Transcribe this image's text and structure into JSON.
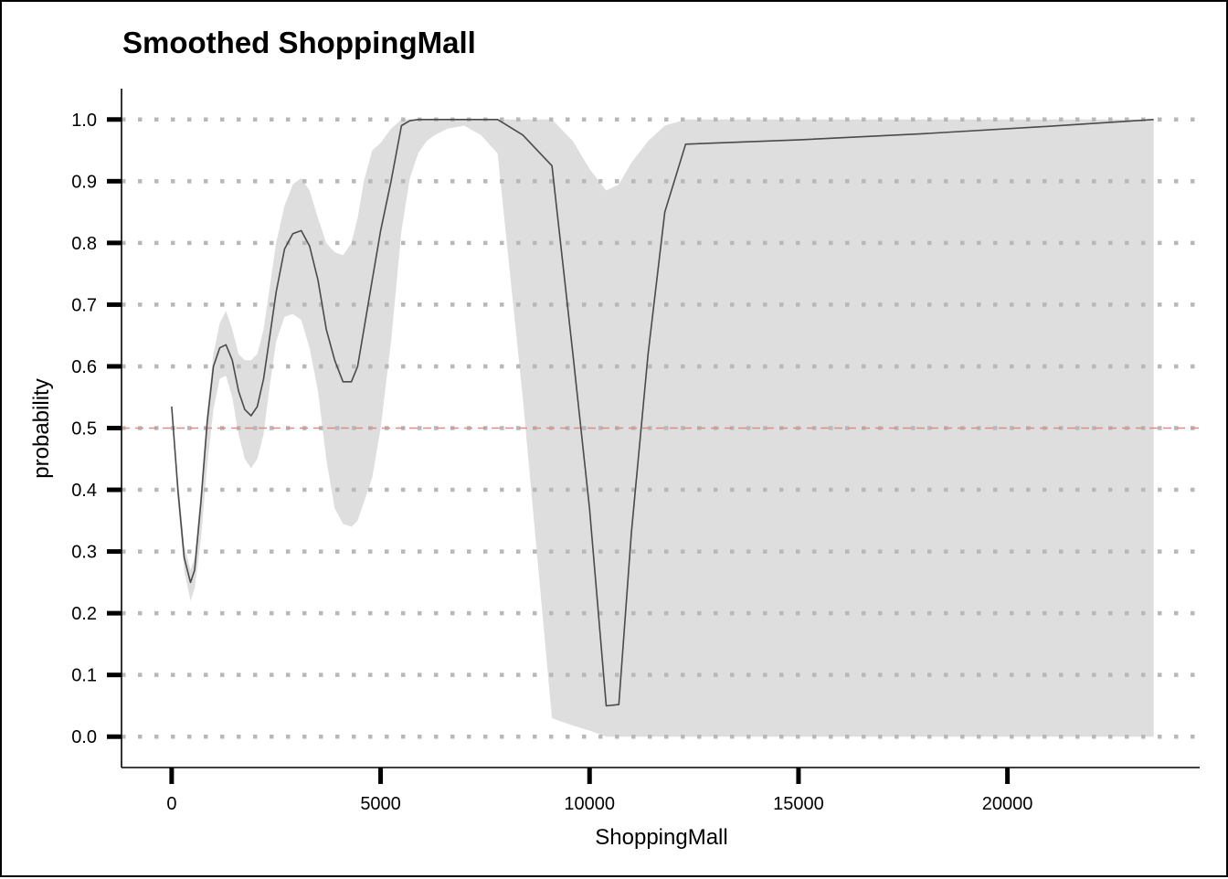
{
  "chart_data": {
    "type": "line",
    "title": "Smoothed ShoppingMall",
    "xlabel": "ShoppingMall",
    "ylabel": "probability",
    "xlim": [
      -1200,
      24600
    ],
    "ylim": [
      -0.05,
      1.05
    ],
    "x_ticks": [
      0,
      5000,
      10000,
      15000,
      20000
    ],
    "x_tick_labels": [
      "0",
      "5000",
      "10000",
      "15000",
      "20000"
    ],
    "y_ticks": [
      0.0,
      0.1,
      0.2,
      0.3,
      0.4,
      0.5,
      0.6,
      0.7,
      0.8,
      0.9,
      1.0
    ],
    "y_tick_labels": [
      "0.0",
      "0.1",
      "0.2",
      "0.3",
      "0.4",
      "0.5",
      "0.6",
      "0.7",
      "0.8",
      "0.9",
      "1.0"
    ],
    "grid": "horizontal dotted",
    "reference_line": {
      "y": 0.5,
      "style": "dashed",
      "color": "#e08a8a"
    },
    "colors": {
      "line": "#4a4a4a",
      "band": "#dedede",
      "grid": "#b8b8b8",
      "reference": "#e08a8a"
    },
    "series": [
      {
        "x": [
          0,
          150,
          300,
          450,
          550,
          700,
          850,
          1000,
          1150,
          1300,
          1450,
          1600,
          1750,
          1900,
          2050,
          2200,
          2350,
          2500,
          2700,
          2900,
          3100,
          3300,
          3500,
          3700,
          3900,
          4100,
          4300,
          4450,
          4600,
          4800,
          5000,
          5250,
          5500,
          5700,
          5900,
          6100,
          6300,
          6600,
          7000,
          7400,
          7800,
          8400,
          9100,
          9600,
          10000,
          10400,
          10700,
          11000,
          11400,
          11800,
          12300,
          15000,
          18000,
          21000,
          23500
        ],
        "y": [
          0.535,
          0.4,
          0.29,
          0.25,
          0.27,
          0.38,
          0.51,
          0.6,
          0.63,
          0.635,
          0.61,
          0.56,
          0.53,
          0.52,
          0.535,
          0.58,
          0.65,
          0.72,
          0.79,
          0.815,
          0.82,
          0.795,
          0.74,
          0.66,
          0.61,
          0.575,
          0.575,
          0.6,
          0.66,
          0.74,
          0.82,
          0.9,
          0.99,
          0.998,
          1.0,
          1.0,
          1.0,
          1.0,
          1.0,
          1.0,
          1.0,
          0.975,
          0.925,
          0.62,
          0.37,
          0.05,
          0.052,
          0.33,
          0.62,
          0.85,
          0.96,
          0.967,
          0.977,
          0.989,
          1.0
        ],
        "ci_upper": [
          0.535,
          0.42,
          0.31,
          0.27,
          0.29,
          0.4,
          0.53,
          0.62,
          0.67,
          0.69,
          0.66,
          0.62,
          0.61,
          0.61,
          0.62,
          0.66,
          0.73,
          0.8,
          0.86,
          0.895,
          0.905,
          0.885,
          0.84,
          0.8,
          0.785,
          0.78,
          0.8,
          0.84,
          0.9,
          0.95,
          0.962,
          0.985,
          1.0,
          1.0,
          1.0,
          1.0,
          1.0,
          1.0,
          1.0,
          1.0,
          1.0,
          1.0,
          1.0,
          0.965,
          0.92,
          0.885,
          0.895,
          0.93,
          0.965,
          0.99,
          1.0,
          1.0,
          1.0,
          1.0,
          1.0
        ],
        "ci_lower": [
          0.535,
          0.38,
          0.27,
          0.22,
          0.24,
          0.32,
          0.44,
          0.53,
          0.58,
          0.585,
          0.55,
          0.49,
          0.45,
          0.435,
          0.45,
          0.49,
          0.57,
          0.64,
          0.68,
          0.685,
          0.675,
          0.63,
          0.56,
          0.45,
          0.37,
          0.345,
          0.34,
          0.35,
          0.38,
          0.42,
          0.5,
          0.64,
          0.82,
          0.905,
          0.945,
          0.965,
          0.975,
          0.985,
          0.99,
          0.975,
          0.945,
          0.55,
          0.03,
          0.018,
          0.01,
          0.0,
          0.0,
          0.0,
          0.0,
          0.0,
          0.0,
          0.0,
          0.0,
          0.0,
          0.0
        ]
      }
    ]
  }
}
